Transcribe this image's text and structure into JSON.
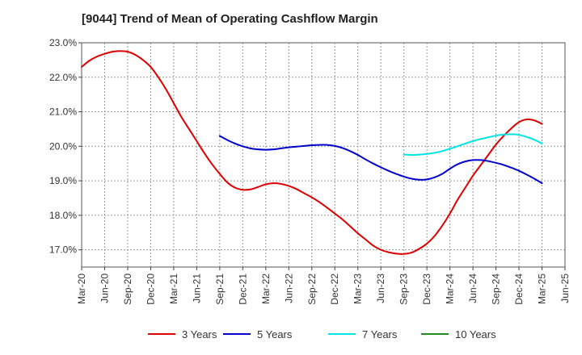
{
  "chart_data": {
    "type": "line",
    "title": "[9044]  Trend of Mean of Operating Cashflow Margin",
    "xlabel": "",
    "ylabel": "",
    "x_ticks": [
      "Mar-20",
      "Jun-20",
      "Sep-20",
      "Dec-20",
      "Mar-21",
      "Jun-21",
      "Sep-21",
      "Dec-21",
      "Mar-22",
      "Jun-22",
      "Sep-22",
      "Dec-22",
      "Mar-23",
      "Jun-23",
      "Sep-23",
      "Dec-23",
      "Mar-24",
      "Jun-24",
      "Sep-24",
      "Dec-24",
      "Mar-25",
      "Jun-25"
    ],
    "y_ticks": [
      "17.0%",
      "18.0%",
      "19.0%",
      "20.0%",
      "21.0%",
      "22.0%",
      "23.0%"
    ],
    "ylim": [
      16.5,
      23.0
    ],
    "grid": true,
    "legend_position": "bottom",
    "series": [
      {
        "name": "3 Years",
        "color": "#dd0000",
        "x": [
          "Mar-20",
          "Apr-20",
          "May-20",
          "Jun-20",
          "Jul-20",
          "Aug-20",
          "Sep-20",
          "Oct-20",
          "Nov-20",
          "Dec-20",
          "Jan-21",
          "Feb-21",
          "Mar-21",
          "Apr-21",
          "May-21",
          "Jun-21",
          "Jul-21",
          "Aug-21",
          "Sep-21",
          "Oct-21",
          "Nov-21",
          "Dec-21",
          "Jan-22",
          "Feb-22",
          "Mar-22",
          "Apr-22",
          "May-22",
          "Jun-22",
          "Jul-22",
          "Aug-22",
          "Sep-22",
          "Oct-22",
          "Nov-22",
          "Dec-22",
          "Jan-23",
          "Feb-23",
          "Mar-23",
          "Apr-23",
          "May-23",
          "Jun-23",
          "Jul-23",
          "Aug-23",
          "Sep-23",
          "Oct-23",
          "Nov-23",
          "Dec-23",
          "Jan-24",
          "Feb-24",
          "Mar-24",
          "Apr-24",
          "May-24",
          "Jun-24",
          "Jul-24",
          "Aug-24",
          "Sep-24",
          "Oct-24",
          "Nov-24",
          "Dec-24",
          "Jan-25",
          "Feb-25",
          "Mar-25"
        ],
        "values": [
          22.3,
          22.48,
          22.6,
          22.68,
          22.74,
          22.76,
          22.74,
          22.65,
          22.5,
          22.3,
          22.0,
          21.65,
          21.25,
          20.85,
          20.5,
          20.15,
          19.8,
          19.48,
          19.2,
          18.95,
          18.8,
          18.74,
          18.75,
          18.82,
          18.9,
          18.93,
          18.91,
          18.85,
          18.76,
          18.64,
          18.52,
          18.38,
          18.22,
          18.05,
          17.88,
          17.68,
          17.48,
          17.3,
          17.12,
          17.0,
          16.93,
          16.89,
          16.88,
          16.92,
          17.03,
          17.18,
          17.4,
          17.7,
          18.05,
          18.45,
          18.8,
          19.15,
          19.45,
          19.75,
          20.05,
          20.3,
          20.52,
          20.7,
          20.78,
          20.75,
          20.65
        ]
      },
      {
        "name": "5 Years",
        "color": "#0000cc",
        "x": [
          "Sep-21",
          "Oct-21",
          "Nov-21",
          "Dec-21",
          "Jan-22",
          "Feb-22",
          "Mar-22",
          "Apr-22",
          "May-22",
          "Jun-22",
          "Jul-22",
          "Aug-22",
          "Sep-22",
          "Oct-22",
          "Nov-22",
          "Dec-22",
          "Jan-23",
          "Feb-23",
          "Mar-23",
          "Apr-23",
          "May-23",
          "Jun-23",
          "Jul-23",
          "Aug-23",
          "Sep-23",
          "Oct-23",
          "Nov-23",
          "Dec-23",
          "Jan-24",
          "Feb-24",
          "Mar-24",
          "Apr-24",
          "May-24",
          "Jun-24",
          "Jul-24",
          "Aug-24",
          "Sep-24",
          "Oct-24",
          "Nov-24",
          "Dec-24",
          "Jan-25",
          "Feb-25",
          "Mar-25"
        ],
        "values": [
          20.3,
          20.18,
          20.08,
          20.0,
          19.94,
          19.91,
          19.9,
          19.91,
          19.94,
          19.97,
          19.99,
          20.01,
          20.03,
          20.04,
          20.04,
          20.01,
          19.95,
          19.86,
          19.75,
          19.62,
          19.5,
          19.39,
          19.29,
          19.2,
          19.12,
          19.06,
          19.03,
          19.04,
          19.1,
          19.2,
          19.35,
          19.48,
          19.56,
          19.6,
          19.6,
          19.57,
          19.52,
          19.46,
          19.38,
          19.29,
          19.18,
          19.06,
          18.93
        ]
      },
      {
        "name": "7 Years",
        "color": "#00e5e5",
        "x": [
          "Sep-23",
          "Oct-23",
          "Nov-23",
          "Dec-23",
          "Jan-24",
          "Feb-24",
          "Mar-24",
          "Apr-24",
          "May-24",
          "Jun-24",
          "Jul-24",
          "Aug-24",
          "Sep-24",
          "Oct-24",
          "Nov-24",
          "Dec-24",
          "Jan-25",
          "Feb-25",
          "Mar-25"
        ],
        "values": [
          19.76,
          19.75,
          19.76,
          19.78,
          19.81,
          19.86,
          19.93,
          20.0,
          20.08,
          20.15,
          20.21,
          20.26,
          20.31,
          20.34,
          20.35,
          20.33,
          20.27,
          20.19,
          20.08
        ]
      },
      {
        "name": "10 Years",
        "color": "#228b22",
        "x": [],
        "values": []
      }
    ]
  }
}
